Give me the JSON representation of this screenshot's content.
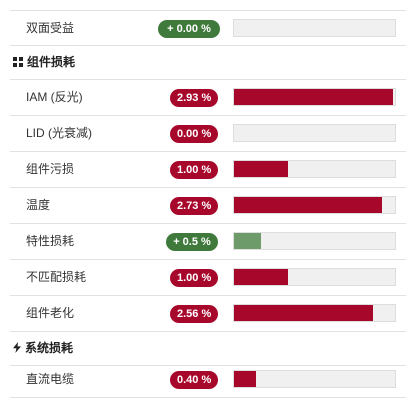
{
  "rows": {
    "bifacial": {
      "label": "双面受益",
      "value": "+ 0.00 %",
      "tone": "green",
      "percent": 0.0
    },
    "iam": {
      "label": "IAM (反光)",
      "value": "2.93 %",
      "tone": "red",
      "percent": 2.93
    },
    "lid": {
      "label": "LID (光衰减)",
      "value": "0.00 %",
      "tone": "red",
      "percent": 0.0
    },
    "soiling": {
      "label": "组件污损",
      "value": "1.00 %",
      "tone": "red",
      "percent": 1.0
    },
    "temperature": {
      "label": "温度",
      "value": "2.73 %",
      "tone": "red",
      "percent": 2.73
    },
    "quality": {
      "label": "特性损耗",
      "value": "+ 0.5 %",
      "tone": "green",
      "percent": 0.5
    },
    "mismatch": {
      "label": "不匹配损耗",
      "value": "1.00 %",
      "tone": "red",
      "percent": 1.0
    },
    "aging": {
      "label": "组件老化",
      "value": "2.56 %",
      "tone": "red",
      "percent": 2.56
    },
    "dc_cable": {
      "label": "直流电缆",
      "value": "0.40 %",
      "tone": "red",
      "percent": 0.4
    }
  },
  "sections": {
    "module_losses": {
      "title": "组件损耗",
      "icon": "grid-icon"
    },
    "system_losses": {
      "title": "系统损耗",
      "icon": "bolt-icon"
    }
  },
  "scale_max_percent": 2.97,
  "colors": {
    "loss": "#a8072c",
    "gain": "#3f7a3c",
    "gain_bar": "#6e9b6a"
  }
}
